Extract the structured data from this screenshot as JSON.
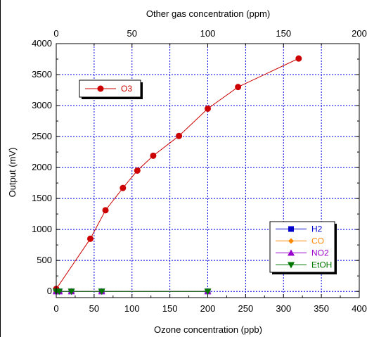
{
  "chart_data": {
    "type": "scatter",
    "title": "",
    "xlabel": "Ozone concentration (ppb)",
    "x2label": "Other gas concentration (ppm)",
    "ylabel": "Output (mV)",
    "xlim": [
      0,
      400
    ],
    "x2lim": [
      0,
      200
    ],
    "ylim": [
      -100,
      4000
    ],
    "xticks": [
      0,
      50,
      100,
      150,
      200,
      250,
      300,
      350,
      400
    ],
    "x2ticks": [
      0,
      50,
      100,
      150,
      200
    ],
    "yticks": [
      0,
      500,
      1000,
      1500,
      2000,
      2500,
      3000,
      3500,
      4000
    ],
    "grid": true,
    "series": [
      {
        "name": "O3",
        "axis": "bottom",
        "color": "#cc0000",
        "marker": "circle",
        "x": [
          0,
          45,
          65,
          88,
          107,
          128,
          162,
          200,
          240,
          320
        ],
        "y": [
          40,
          850,
          1310,
          1670,
          1950,
          2190,
          2510,
          2950,
          3300,
          3760
        ]
      },
      {
        "name": "H2",
        "axis": "top",
        "color": "#0000cc",
        "marker": "square",
        "x": [
          0,
          2,
          10,
          30,
          100
        ],
        "y": [
          0,
          0,
          0,
          0,
          0
        ]
      },
      {
        "name": "CO",
        "axis": "top",
        "color": "#ff8800",
        "marker": "diamond",
        "x": [
          0,
          2,
          10,
          30,
          100
        ],
        "y": [
          0,
          0,
          0,
          0,
          0
        ]
      },
      {
        "name": "NO2",
        "axis": "top",
        "color": "#9900cc",
        "marker": "triangle-up",
        "x": [
          0,
          2,
          10,
          30,
          100
        ],
        "y": [
          0,
          0,
          0,
          0,
          0
        ]
      },
      {
        "name": "EtOH",
        "axis": "top",
        "color": "#007700",
        "marker": "triangle-down",
        "x": [
          0,
          2,
          10,
          30,
          100
        ],
        "y": [
          0,
          0,
          0,
          0,
          0
        ]
      }
    ],
    "legends": [
      {
        "placement": "top-left",
        "entries": [
          "O3"
        ]
      },
      {
        "placement": "bottom-right",
        "entries": [
          "H2",
          "CO",
          "NO2",
          "EtOH"
        ]
      }
    ]
  }
}
